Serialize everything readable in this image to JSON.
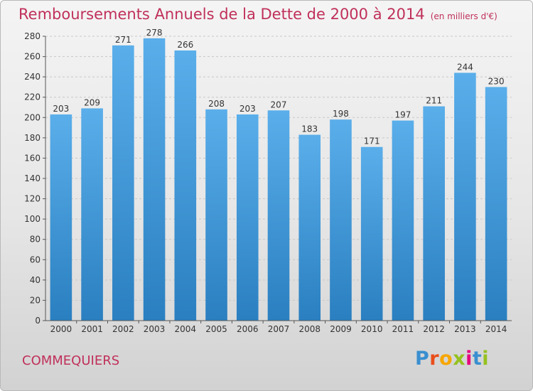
{
  "title": "Remboursements Annuels de la Dette de 2000 à 2014",
  "unit": "(en milliers d'€)",
  "commune": "COMMEQUIERS",
  "logo": {
    "letters": [
      "P",
      "r",
      "o",
      "x",
      "i",
      "t",
      "i"
    ],
    "colors": [
      "#3a8fd0",
      "#e94e1b",
      "#f7a600",
      "#95c11f",
      "#e6007e",
      "#3a8fd0",
      "#95c11f"
    ]
  },
  "colors": {
    "bar_top": "#5aaeea",
    "bar_bottom": "#2a7fc0",
    "title": "#c0305a"
  },
  "chart_data": {
    "type": "bar",
    "title": "Remboursements Annuels de la Dette de 2000 à 2014",
    "subtitle": "(en milliers d'€)",
    "categories": [
      "2000",
      "2001",
      "2002",
      "2003",
      "2004",
      "2005",
      "2006",
      "2007",
      "2008",
      "2009",
      "2010",
      "2011",
      "2012",
      "2013",
      "2014"
    ],
    "values": [
      203,
      209,
      271,
      278,
      266,
      208,
      203,
      207,
      183,
      198,
      171,
      197,
      211,
      244,
      230
    ],
    "ylim": [
      0,
      280
    ],
    "yticks": [
      0,
      20,
      40,
      60,
      80,
      100,
      120,
      140,
      160,
      180,
      200,
      220,
      240,
      260,
      280
    ],
    "grid": true,
    "xlabel": "",
    "ylabel": ""
  }
}
